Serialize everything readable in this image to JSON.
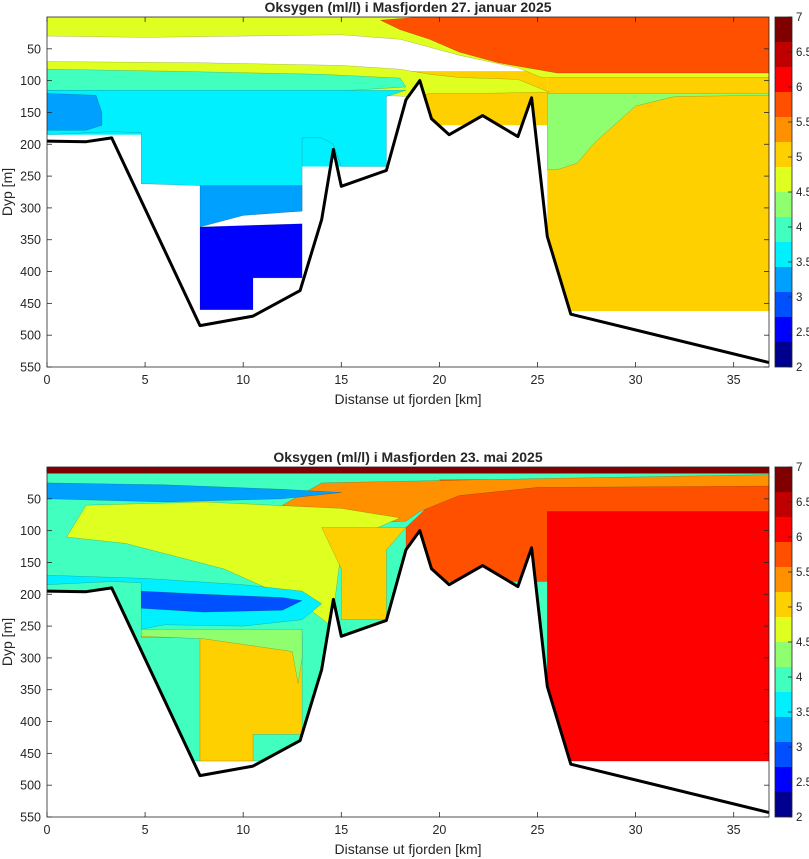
{
  "colors": {
    "land": "#ffffff",
    "bathymetry_line": "#000000",
    "scale": [
      "#00008f",
      "#0000ff",
      "#0050ff",
      "#00a0ff",
      "#00f0ff",
      "#40ffbf",
      "#8fff70",
      "#dfff20",
      "#ffd000",
      "#ff9000",
      "#ff5000",
      "#ff0000",
      "#c00000",
      "#800000"
    ]
  },
  "chart_data": [
    {
      "type": "filled-contour section",
      "title": "Oksygen (ml/l) i Masfjorden 27. januar 2025",
      "xlabel": "Distanse ut fjorden [km]",
      "ylabel": "Dyp [m]",
      "xlim": [
        0,
        36.8
      ],
      "ylim": [
        0,
        550
      ],
      "y_reversed": true,
      "xticks": [
        "0",
        "5",
        "10",
        "15",
        "20",
        "25",
        "30",
        "35"
      ],
      "yticks": [
        "50",
        "100",
        "150",
        "200",
        "250",
        "300",
        "350",
        "400",
        "450",
        "500",
        "550"
      ],
      "colorbar": {
        "range": [
          2,
          7
        ],
        "ticks": [
          "2",
          "2.5",
          "3",
          "3.5",
          "4",
          "4.5",
          "5",
          "5.5",
          "6",
          "6.5",
          "7"
        ]
      },
      "bathymetry": [
        [
          0,
          195
        ],
        [
          2,
          196
        ],
        [
          3.3,
          190
        ],
        [
          7.8,
          485
        ],
        [
          10.5,
          470
        ],
        [
          12.9,
          430
        ],
        [
          14,
          318
        ],
        [
          14.6,
          208
        ],
        [
          15,
          266
        ],
        [
          17.3,
          241
        ],
        [
          18.3,
          130
        ],
        [
          19,
          100
        ],
        [
          19.6,
          160
        ],
        [
          20.5,
          185
        ],
        [
          22.2,
          155
        ],
        [
          24,
          188
        ],
        [
          24.7,
          127
        ],
        [
          25.5,
          345
        ],
        [
          26.7,
          467
        ],
        [
          36.8,
          543
        ]
      ],
      "layers": [
        {
          "value": 4.8,
          "polygon": [
            [
              0,
              0
            ],
            [
              36.8,
              0
            ],
            [
              36.8,
              95
            ],
            [
              25.2,
              95
            ],
            [
              24,
              80
            ],
            [
              21,
              60
            ],
            [
              18,
              35
            ],
            [
              15,
              28
            ],
            [
              10,
              30
            ],
            [
              5,
              32
            ],
            [
              0,
              30
            ]
          ]
        },
        {
          "value": 5.7,
          "polygon": [
            [
              19,
              0
            ],
            [
              36.8,
              0
            ],
            [
              36.8,
              88
            ],
            [
              26,
              88
            ],
            [
              23,
              72
            ],
            [
              21,
              55
            ],
            [
              19.5,
              35
            ],
            [
              18,
              20
            ],
            [
              17,
              5
            ]
          ]
        },
        {
          "value": 4.5,
          "polygon": [
            [
              0,
              70
            ],
            [
              8,
              72
            ],
            [
              15,
              76
            ],
            [
              18,
              82
            ],
            [
              19.5,
              90
            ],
            [
              21,
              95
            ],
            [
              24,
              98
            ],
            [
              25.6,
              118
            ],
            [
              22,
              120
            ],
            [
              19.6,
              120
            ],
            [
              18.5,
              125
            ],
            [
              14,
              120
            ],
            [
              0,
              110
            ]
          ]
        },
        {
          "value": 4.4,
          "polygon": [
            [
              25.5,
              120
            ],
            [
              36.8,
              120
            ],
            [
              36.8,
              123
            ],
            [
              32,
              125
            ],
            [
              30,
              140
            ],
            [
              28,
              195
            ],
            [
              27,
              230
            ],
            [
              26,
              240
            ],
            [
              25.5,
              240
            ]
          ]
        },
        {
          "value": 3.8,
          "polygon": [
            [
              0,
              82
            ],
            [
              6,
              85
            ],
            [
              14,
              90
            ],
            [
              18,
              96
            ],
            [
              18.3,
              110
            ],
            [
              14,
              118
            ],
            [
              0,
              115
            ]
          ]
        },
        {
          "value": 3.7,
          "polygon": [
            [
              0,
              115
            ],
            [
              18.3,
              115
            ],
            [
              17.3,
              125
            ],
            [
              17.3,
              235
            ],
            [
              15,
              235
            ],
            [
              14.6,
              200
            ],
            [
              14,
              190
            ],
            [
              13,
              190
            ],
            [
              13,
              305
            ],
            [
              10,
              310
            ],
            [
              7.8,
              265
            ],
            [
              4.8,
              262
            ],
            [
              4.8,
              182
            ],
            [
              3.3,
              180
            ],
            [
              2,
              182
            ],
            [
              0,
              185
            ]
          ]
        },
        {
          "value": 3.2,
          "polygon": [
            [
              0,
              120
            ],
            [
              2.5,
              123
            ],
            [
              2.8,
              150
            ],
            [
              2.8,
              170
            ],
            [
              2,
              178
            ],
            [
              0,
              178
            ]
          ]
        },
        {
          "value": 3.1,
          "polygon": [
            [
              7.8,
              265
            ],
            [
              13,
              265
            ],
            [
              13,
              305
            ],
            [
              10,
              312
            ],
            [
              7.8,
              330
            ]
          ]
        },
        {
          "value": 2.6,
          "polygon": [
            [
              7.8,
              330
            ],
            [
              13,
              325
            ],
            [
              13,
              410
            ],
            [
              10.5,
              410
            ],
            [
              10.5,
              460
            ],
            [
              7.8,
              460
            ]
          ]
        }
      ],
      "fills": [
        {
          "value": 3.7,
          "x": [
            0,
            4.8
          ],
          "y": [
            110,
            185
          ]
        },
        {
          "value": 3.7,
          "x": [
            4.8,
            13
          ],
          "y": [
            110,
            262
          ]
        },
        {
          "value": 3.7,
          "x": [
            13,
            17.3
          ],
          "y": [
            110,
            235
          ]
        }
      ],
      "background_fills": [
        {
          "value": 4.9,
          "x": [
            25.5,
            36.8
          ],
          "y": [
            95,
            462
          ]
        },
        {
          "value": 4.9,
          "x": [
            18.3,
            25.5
          ],
          "y": [
            85,
            170
          ]
        }
      ]
    },
    {
      "type": "filled-contour section",
      "title": "Oksygen (ml/l) i Masfjorden 23. mai 2025",
      "xlabel": "Distanse ut fjorden [km]",
      "ylabel": "Dyp [m]",
      "xlim": [
        0,
        36.8
      ],
      "ylim": [
        0,
        550
      ],
      "y_reversed": true,
      "xticks": [
        "0",
        "5",
        "10",
        "15",
        "20",
        "25",
        "30",
        "35"
      ],
      "yticks": [
        "50",
        "100",
        "150",
        "200",
        "250",
        "300",
        "350",
        "400",
        "450",
        "500",
        "550"
      ],
      "colorbar": {
        "range": [
          2,
          7
        ],
        "ticks": [
          "2",
          "2.5",
          "3",
          "3.5",
          "4",
          "4.5",
          "5",
          "5.5",
          "6",
          "6.5",
          "7"
        ]
      },
      "bathymetry": [
        [
          0,
          195
        ],
        [
          2,
          196
        ],
        [
          3.3,
          190
        ],
        [
          7.8,
          485
        ],
        [
          10.5,
          470
        ],
        [
          12.9,
          430
        ],
        [
          14,
          318
        ],
        [
          14.6,
          208
        ],
        [
          15,
          266
        ],
        [
          17.3,
          241
        ],
        [
          18.3,
          130
        ],
        [
          19,
          100
        ],
        [
          19.6,
          160
        ],
        [
          20.5,
          185
        ],
        [
          22.2,
          155
        ],
        [
          24,
          188
        ],
        [
          24.7,
          127
        ],
        [
          25.5,
          345
        ],
        [
          26.7,
          467
        ],
        [
          36.8,
          543
        ]
      ],
      "layers": [
        {
          "value": 3.9,
          "polygon": [
            [
              0,
              0
            ],
            [
              36.8,
              0
            ],
            [
              36.8,
              462
            ],
            [
              0,
              462
            ]
          ]
        },
        {
          "value": 5.7,
          "polygon": [
            [
              20,
              20
            ],
            [
              36.8,
              20
            ],
            [
              36.8,
              180
            ],
            [
              18.3,
              180
            ],
            [
              18.3,
              95
            ],
            [
              19.5,
              60
            ],
            [
              20.5,
              35
            ]
          ]
        },
        {
          "value": 6.2,
          "polygon": [
            [
              25.5,
              70
            ],
            [
              36.8,
              70
            ],
            [
              36.8,
              462
            ],
            [
              25.5,
              462
            ]
          ]
        },
        {
          "value": 5.3,
          "polygon": [
            [
              14,
              25
            ],
            [
              22,
              20
            ],
            [
              36.8,
              12
            ],
            [
              36.8,
              30
            ],
            [
              25,
              32
            ],
            [
              21,
              45
            ],
            [
              19,
              70
            ],
            [
              18.3,
              85
            ],
            [
              15,
              90
            ],
            [
              12,
              60
            ]
          ]
        },
        {
          "value": 4.6,
          "polygon": [
            [
              2,
              60
            ],
            [
              8,
              55
            ],
            [
              15,
              65
            ],
            [
              18,
              80
            ],
            [
              16.5,
              100
            ],
            [
              15,
              130
            ],
            [
              14.5,
              250
            ],
            [
              13,
              215
            ],
            [
              9,
              160
            ],
            [
              4,
              120
            ],
            [
              1,
              110
            ]
          ]
        },
        {
          "value": 4.9,
          "polygon": [
            [
              14,
              95
            ],
            [
              18.3,
              95
            ],
            [
              17.3,
              130
            ],
            [
              17.3,
              240
            ],
            [
              15,
              240
            ],
            [
              15,
              160
            ]
          ]
        },
        {
          "value": 3.4,
          "polygon": [
            [
              0,
              25
            ],
            [
              6,
              28
            ],
            [
              12,
              35
            ],
            [
              15,
              40
            ],
            [
              12,
              50
            ],
            [
              6,
              55
            ],
            [
              0,
              50
            ]
          ]
        },
        {
          "value": 3.6,
          "polygon": [
            [
              0,
              170
            ],
            [
              5,
              175
            ],
            [
              10,
              185
            ],
            [
              13,
              195
            ],
            [
              14,
              215
            ],
            [
              13,
              240
            ],
            [
              10,
              250
            ],
            [
              6,
              248
            ],
            [
              4.8,
              255
            ],
            [
              4.8,
              182
            ],
            [
              3.3,
              180
            ],
            [
              2,
              182
            ],
            [
              0,
              185
            ]
          ]
        },
        {
          "value": 2.9,
          "polygon": [
            [
              4.8,
              195
            ],
            [
              8,
              200
            ],
            [
              12,
              205
            ],
            [
              13,
              210
            ],
            [
              12,
              225
            ],
            [
              8,
              228
            ],
            [
              4.8,
              222
            ]
          ]
        },
        {
          "value": 4.9,
          "polygon": [
            [
              4.8,
              265
            ],
            [
              13,
              265
            ],
            [
              13,
              420
            ],
            [
              10.5,
              420
            ],
            [
              10.5,
              462
            ],
            [
              7.8,
              462
            ],
            [
              7.8,
              268
            ],
            [
              4.8,
              268
            ]
          ]
        },
        {
          "value": 4.3,
          "polygon": [
            [
              4.8,
              255
            ],
            [
              13,
              255
            ],
            [
              13,
              300
            ],
            [
              12.8,
              340
            ],
            [
              12.5,
              290
            ],
            [
              8,
              270
            ],
            [
              4.8,
              266
            ]
          ]
        },
        {
          "value": 6.8,
          "polygon": [
            [
              0,
              0
            ],
            [
              36.8,
              0
            ],
            [
              36.8,
              10
            ],
            [
              0,
              10
            ]
          ]
        }
      ],
      "fills": [],
      "background_fills": []
    }
  ]
}
